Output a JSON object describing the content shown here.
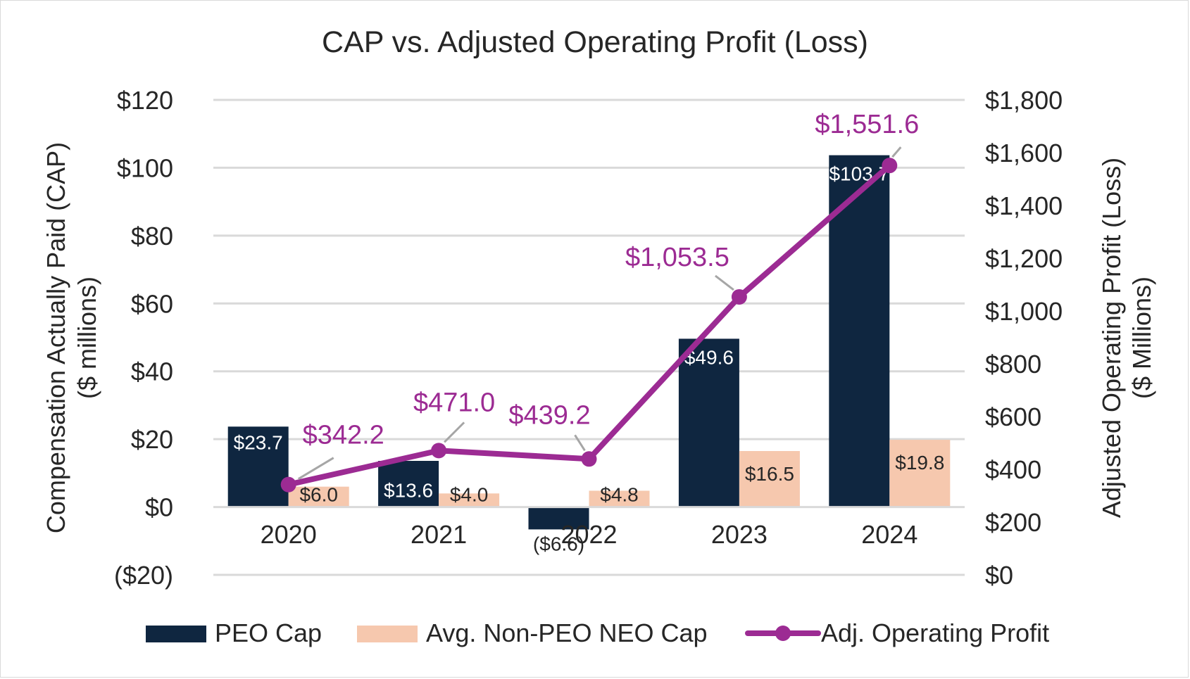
{
  "chart_data": {
    "type": "bar",
    "title": "CAP vs. Adjusted Operating Profit (Loss)",
    "categories": [
      "2020",
      "2021",
      "2022",
      "2023",
      "2024"
    ],
    "y_left": {
      "label_line1": "Compensation Actually Paid (CAP)",
      "label_line2": "($ millions)",
      "ylim": [
        -20,
        120
      ],
      "ticks": [
        -20,
        0,
        20,
        40,
        60,
        80,
        100,
        120
      ],
      "tick_labels": [
        "($20)",
        "$0",
        "$20",
        "$40",
        "$60",
        "$80",
        "$100",
        "$120"
      ]
    },
    "y_right": {
      "label_line1": "Adjusted Operating Profit (Loss)",
      "label_line2": "($ Millions)",
      "ylim": [
        0,
        1800
      ],
      "ticks": [
        0,
        200,
        400,
        600,
        800,
        1000,
        1200,
        1400,
        1600,
        1800
      ],
      "tick_labels": [
        "$0",
        "$200",
        "$400",
        "$600",
        "$800",
        "$1,000",
        "$1,200",
        "$1,400",
        "$1,600",
        "$1,800"
      ]
    },
    "series": [
      {
        "name": "PEO Cap",
        "type": "bar",
        "axis": "left",
        "color": "#0f2640",
        "values": [
          23.7,
          13.6,
          -6.6,
          49.6,
          103.7
        ],
        "labels": [
          "$23.7",
          "$13.6",
          "($6.6)",
          "$49.6",
          "$103.7"
        ]
      },
      {
        "name": "Avg. Non-PEO NEO Cap",
        "type": "bar",
        "axis": "left",
        "color": "#f6c8ae",
        "values": [
          6.0,
          4.0,
          4.8,
          16.5,
          19.8
        ],
        "labels": [
          "$6.0",
          "$4.0",
          "$4.8",
          "$16.5",
          "$19.8"
        ]
      },
      {
        "name": "Adj. Operating Profit",
        "type": "line",
        "axis": "right",
        "color": "#9c2b93",
        "values": [
          342.2,
          471.0,
          439.2,
          1053.5,
          1551.6
        ],
        "labels": [
          "$342.2",
          "$471.0",
          "$439.2",
          "$1,053.5",
          "$1,551.6"
        ]
      }
    ],
    "legend_position": "bottom",
    "grid": true
  }
}
